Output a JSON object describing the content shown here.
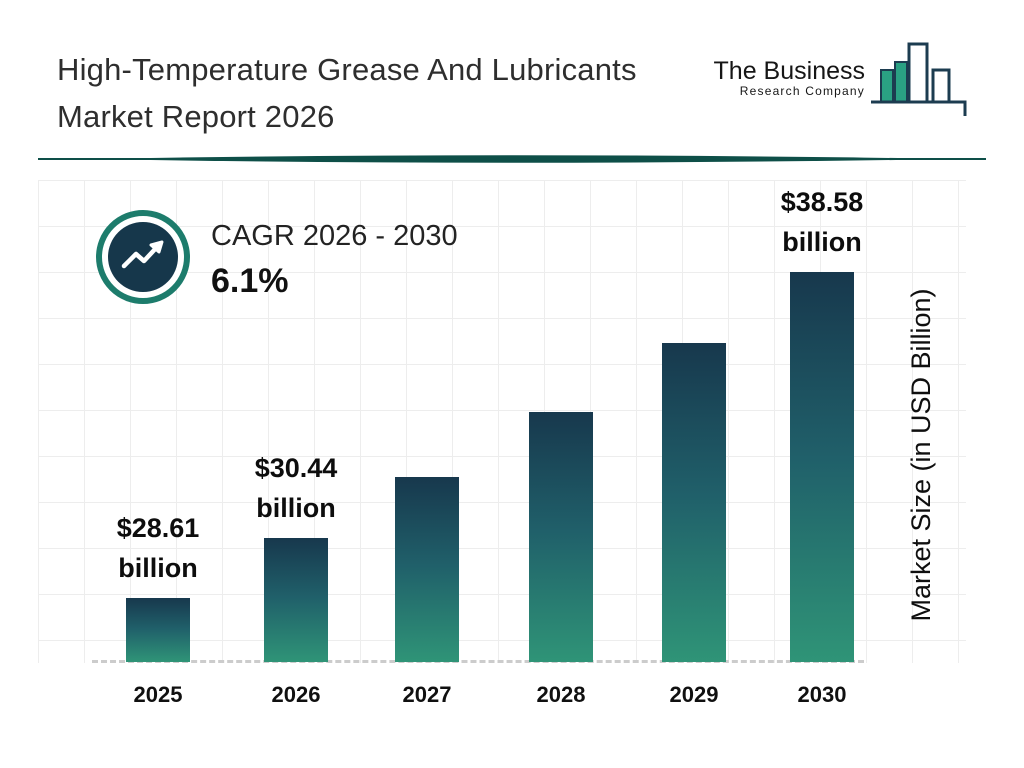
{
  "header": {
    "title_line1": "High-Temperature Grease And Lubricants",
    "title_line2": "Market Report 2026",
    "logo": {
      "name_line1": "The Business",
      "name_line2": "Research Company",
      "icon": "bar-chart-logo-icon"
    }
  },
  "cagr": {
    "label": "CAGR 2026 - 2030",
    "value": "6.1%",
    "icon": "trending-up-icon"
  },
  "chart_data": {
    "type": "bar",
    "categories": [
      "2025",
      "2026",
      "2027",
      "2028",
      "2029",
      "2030"
    ],
    "values": [
      28.61,
      30.44,
      32.3,
      34.3,
      36.4,
      38.58
    ],
    "value_labels": [
      {
        "index": 0,
        "line1": "$28.61",
        "line2": "billion"
      },
      {
        "index": 1,
        "line1": "$30.44",
        "line2": "billion"
      },
      {
        "index": 5,
        "line1": "$38.58",
        "line2": "billion"
      }
    ],
    "title": "",
    "xlabel": "",
    "ylabel": "Market Size (in USD Billion)",
    "ylim": [
      27,
      40
    ],
    "grid": true,
    "legend": "none",
    "bar_gradient_top": "#17384d",
    "bar_gradient_bottom": "#2f9477"
  },
  "colors": {
    "navy": "#17384d",
    "teal": "#2f9477",
    "ring_teal": "#1d7c6c",
    "divider": "#0e4f48",
    "grid_line": "#ededed"
  }
}
